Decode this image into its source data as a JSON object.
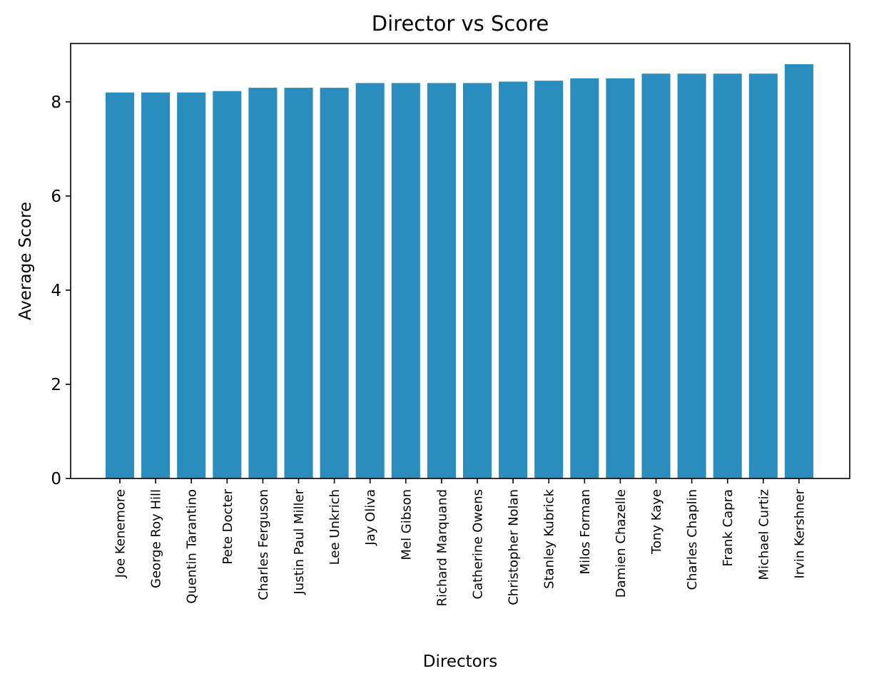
{
  "chart_data": {
    "type": "bar",
    "title": "Director vs Score",
    "xlabel": "Directors",
    "ylabel": "Average Score",
    "categories": [
      "Joe Kenemore",
      "George Roy Hill",
      "Quentin Tarantino",
      "Pete Docter",
      "Charles Ferguson",
      "Justin Paul Miller",
      "Lee Unkrich",
      "Jay Oliva",
      "Mel Gibson",
      "Richard Marquand",
      "Catherine Owens",
      "Christopher Nolan",
      "Stanley Kubrick",
      "Milos Forman",
      "Damien Chazelle",
      "Tony Kaye",
      "Charles Chaplin",
      "Frank Capra",
      "Michael Curtiz",
      "Irvin Kershner"
    ],
    "values": [
      8.2,
      8.2,
      8.2,
      8.23,
      8.3,
      8.3,
      8.3,
      8.4,
      8.4,
      8.4,
      8.4,
      8.43,
      8.45,
      8.5,
      8.5,
      8.6,
      8.6,
      8.6,
      8.6,
      8.8
    ],
    "ylim": [
      0,
      9.24
    ],
    "yticks": [
      0,
      2,
      4,
      6,
      8
    ],
    "bar_color": "#2b8cbe",
    "grid": false,
    "legend": "none"
  }
}
